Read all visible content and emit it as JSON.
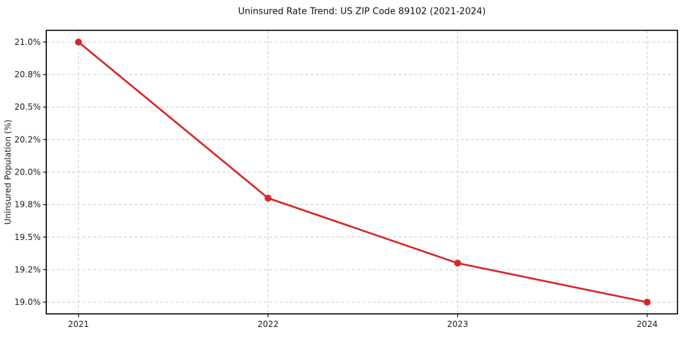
{
  "chart_data": {
    "type": "line",
    "title": "Uninsured Rate Trend: US ZIP Code 89102 (2021-2024)",
    "xlabel": "",
    "ylabel": "Uninsured Population (%)",
    "x": [
      2021,
      2022,
      2023,
      2024
    ],
    "xtick_labels": [
      "2021",
      "2022",
      "2023",
      "2024"
    ],
    "values": [
      21.0,
      19.8,
      19.3,
      19.0
    ],
    "xlim": [
      2020.83,
      2024.16
    ],
    "ylim": [
      18.91,
      21.09
    ],
    "yticks": [
      19.0,
      19.25,
      19.5,
      19.75,
      20.0,
      20.25,
      20.5,
      20.75,
      21.0
    ],
    "ytick_labels": [
      "19.0%",
      "19.2%",
      "19.5%",
      "19.8%",
      "20.0%",
      "20.2%",
      "20.5%",
      "20.8%",
      "21.0%"
    ],
    "grid": true,
    "grid_style": "dashed",
    "legend_position": "none",
    "marker": "o",
    "colors": {
      "line": "#d62728",
      "marker": "#d62728",
      "grid": "#cccccc",
      "spine": "#000000",
      "tick": "#000000",
      "text": "#1a1a1a",
      "background": "#ffffff"
    }
  }
}
